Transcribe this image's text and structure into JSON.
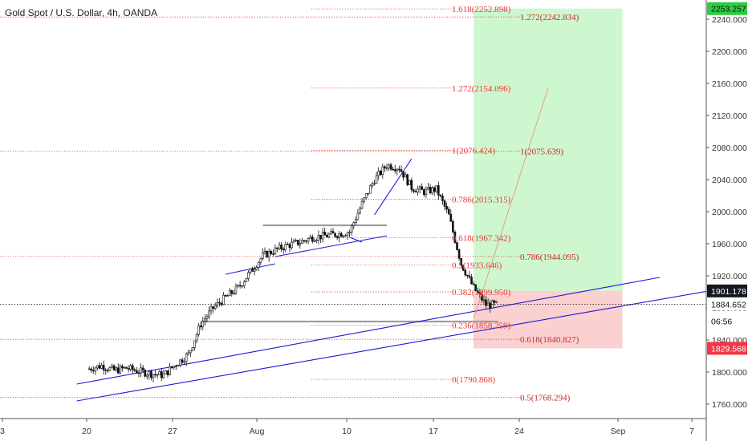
{
  "chart_title": "Gold Spot / U.S. Dollar, 4h, OANDA",
  "colors": {
    "fib_line": "#e53935",
    "fib_text_upper": "#e53935",
    "fib_text_lower": "#c62828",
    "trend": "#1a1ad6",
    "candle": "#111111",
    "profit_zone": "#cff7cf",
    "loss_zone": "#fbd0d0",
    "badge_red": "#f23645",
    "badge_black": "#131722",
    "target_path": "#e0a08a"
  },
  "chart_data": {
    "type": "candlestick",
    "title": "Gold Spot / U.S. Dollar, 4h, OANDA",
    "x_axis": {
      "tick_labels": [
        "3",
        "20",
        "27",
        "Aug",
        "10",
        "17",
        "24",
        "Sep",
        "7"
      ],
      "range_days": [
        "2020-07-13",
        "2020-09-08"
      ]
    },
    "y_axis": {
      "side": "right",
      "range": [
        1740,
        2264
      ],
      "tick_values": [
        1760,
        1800,
        1840,
        1880,
        1920,
        1960,
        2000,
        2040,
        2080,
        2120,
        2160,
        2200,
        2240
      ],
      "tick_labels": [
        "1760.000",
        "1800.000",
        "1840.000",
        "1880.000",
        "1920.000",
        "1960.000",
        "2000.000",
        "2040.000",
        "2080.000",
        "2120.000",
        "2160.000",
        "2200.000",
        "2240.000"
      ]
    },
    "price_badges": [
      {
        "label": "2253.257",
        "value": 2253.257,
        "style": "green"
      },
      {
        "label": "1901.178",
        "value": 1901.178,
        "style": "black"
      },
      {
        "label": "1884.652",
        "value": 1884.652,
        "style": "white"
      },
      {
        "label": "06:56",
        "value": 1863.5,
        "style": "white"
      },
      {
        "label": "1829.568",
        "value": 1829.568,
        "style": "red"
      }
    ],
    "current_price": 1884.652,
    "fib_levels_left": [
      {
        "label": "1.618(2252.898)",
        "value": 2252.898
      },
      {
        "label": "1.272(2154.096)",
        "value": 2154.096
      },
      {
        "label": "1(2076.424)",
        "value": 2076.424
      },
      {
        "label": "0.786(2015.315)",
        "value": 2015.315
      },
      {
        "label": "0.618(1967.342)",
        "value": 1967.342
      },
      {
        "label": "0.5(1933.646)",
        "value": 1933.646
      },
      {
        "label": "0.382(1899.950)",
        "value": 1899.95
      },
      {
        "label": "0.236(1858.259)",
        "value": 1858.259
      },
      {
        "label": "0(1790.868)",
        "value": 1790.868
      }
    ],
    "fib_levels_right": [
      {
        "label": "1.272(2242.834)",
        "value": 2242.834
      },
      {
        "label": "1(2075.639)",
        "value": 2075.639
      },
      {
        "label": "0.786(1944.095)",
        "value": 1944.095
      },
      {
        "label": "0.618(1840.827)",
        "value": 1840.827
      },
      {
        "label": "0.5(1768.294)",
        "value": 1768.294
      }
    ],
    "position": {
      "type": "long",
      "entry": 1901.178,
      "target": 2253.257,
      "stop": 1829.568,
      "start": "2020-08-13",
      "end": "2020-08-25"
    },
    "horizontal_levels": [
      {
        "value": 1983,
        "start": "2020-07-27",
        "end": "2020-08-06"
      },
      {
        "value": 1863,
        "start": "2020-07-22",
        "end": "2020-08-15"
      }
    ],
    "trendlines": [
      {
        "from": [
          "2020-07-12",
          1764
        ],
        "to": [
          "2020-09-08",
          1920
        ]
      },
      {
        "from": [
          "2020-07-12",
          1785
        ],
        "to": [
          "2020-08-28",
          1918
        ]
      },
      {
        "from": [
          "2020-07-24",
          1922
        ],
        "to": [
          "2020-07-28",
          1935
        ]
      },
      {
        "from": [
          "2020-07-28",
          1944
        ],
        "to": [
          "2020-08-06",
          1970
        ]
      },
      {
        "from": [
          "2020-08-05",
          1996
        ],
        "to": [
          "2020-08-08",
          2066
        ]
      },
      {
        "from": [
          "2020-08-03",
          1968
        ],
        "to": [
          "2020-08-04",
          1962
        ]
      }
    ],
    "target_path": {
      "from": [
        "2020-08-13",
        1866
      ],
      "to": [
        "2020-08-19",
        2154
      ]
    },
    "candles": [
      [
        "2020-07-13",
        1804
      ],
      [
        "2020-07-14",
        1808
      ],
      [
        "2020-07-15",
        1802
      ],
      [
        "2020-07-16",
        1805
      ],
      [
        "2020-07-17",
        1801
      ],
      [
        "2020-07-18",
        1798
      ],
      [
        "2020-07-19",
        1796
      ],
      [
        "2020-07-20",
        1810
      ],
      [
        "2020-07-21",
        1822
      ],
      [
        "2020-07-22",
        1860
      ],
      [
        "2020-07-23",
        1880
      ],
      [
        "2020-07-24",
        1893
      ],
      [
        "2020-07-25",
        1905
      ],
      [
        "2020-07-26",
        1925
      ],
      [
        "2020-07-27",
        1945
      ],
      [
        "2020-07-28",
        1952
      ],
      [
        "2020-07-29",
        1958
      ],
      [
        "2020-07-30",
        1962
      ],
      [
        "2020-07-31",
        1968
      ],
      [
        "2020-08-01",
        1970
      ],
      [
        "2020-08-02",
        1972
      ],
      [
        "2020-08-03",
        1975
      ],
      [
        "2020-08-04",
        2010
      ],
      [
        "2020-08-05",
        2040
      ],
      [
        "2020-08-06",
        2058
      ],
      [
        "2020-08-07",
        2055
      ],
      [
        "2020-08-08",
        2030
      ],
      [
        "2020-08-09",
        2025
      ],
      [
        "2020-08-10",
        2028
      ],
      [
        "2020-08-11",
        1995
      ],
      [
        "2020-08-12",
        1935
      ],
      [
        "2020-08-13",
        1905
      ],
      [
        "2020-08-14",
        1884
      ]
    ]
  }
}
